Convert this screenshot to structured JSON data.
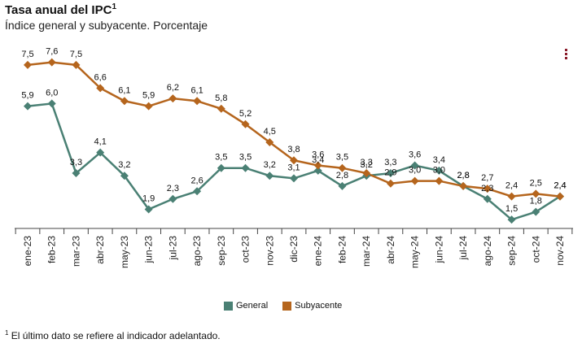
{
  "header": {
    "title": "Tasa anual del IPC",
    "title_sup": "1",
    "subtitle": "Índice general y subyacente. Porcentaje"
  },
  "menu": {
    "icon": "menu-icon"
  },
  "legend": {
    "general": "General",
    "subyacente": "Subyacente"
  },
  "footnote": {
    "sup": "1",
    "text": "El último dato se refiere al indicador adelantado."
  },
  "chart_data": {
    "type": "line",
    "title": "Tasa anual del IPC",
    "subtitle": "Índice general y subyacente. Porcentaje",
    "xlabel": "",
    "ylabel": "",
    "categories": [
      "ene-23",
      "feb-23",
      "mar-23",
      "abr-23",
      "may-23",
      "jun-23",
      "jul-23",
      "ago-23",
      "sep-23",
      "oct-23",
      "nov-23",
      "dic-23",
      "ene-24",
      "feb-24",
      "mar-24",
      "abr-24",
      "may-24",
      "jun-24",
      "jul-24",
      "ago-24",
      "sep-24",
      "oct-24",
      "nov-24"
    ],
    "series": [
      {
        "name": "General",
        "color": "#4a8074",
        "values": [
          5.9,
          6.0,
          3.3,
          4.1,
          3.2,
          1.9,
          2.3,
          2.6,
          3.5,
          3.5,
          3.2,
          3.1,
          3.4,
          2.8,
          3.2,
          3.3,
          3.6,
          3.4,
          2.8,
          2.3,
          1.5,
          1.8,
          2.4
        ],
        "labels": [
          "5,9",
          "6,0",
          "3,3",
          "4,1",
          "3,2",
          "1,9",
          "2,3",
          "2,6",
          "3,5",
          "3,5",
          "3,2",
          "3,1",
          "3,4",
          "2,8",
          "3,2",
          "3,3",
          "3,6",
          "3,4",
          "2,8",
          "2,3",
          "1,5",
          "1,8",
          "2,4"
        ]
      },
      {
        "name": "Subyacente",
        "color": "#b5651d",
        "values": [
          7.5,
          7.6,
          7.5,
          6.6,
          6.1,
          5.9,
          6.2,
          6.1,
          5.8,
          5.2,
          4.5,
          3.8,
          3.6,
          3.5,
          3.3,
          2.9,
          3.0,
          3.0,
          2.8,
          2.7,
          2.4,
          2.5,
          2.4
        ],
        "labels": [
          "7,5",
          "7,6",
          "7,5",
          "6,6",
          "6,1",
          "5,9",
          "6,2",
          "6,1",
          "5,8",
          "5,2",
          "4,5",
          "3,8",
          "3,6",
          "3,5",
          "3,3",
          "2,9",
          "3,0",
          "3,0",
          "2,8",
          "2,7",
          "2,4",
          "2,5",
          "2,4"
        ]
      }
    ],
    "ylim": [
      1.0,
      8.0
    ],
    "grid": false,
    "legend_position": "bottom"
  }
}
